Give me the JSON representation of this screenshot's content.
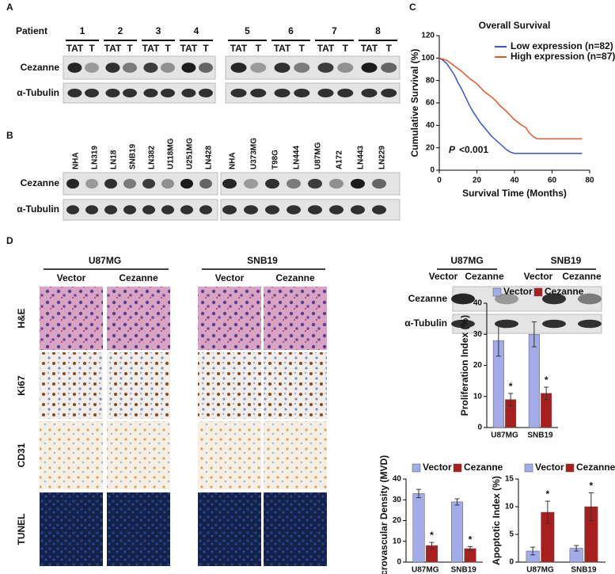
{
  "panel_labels": [
    "A",
    "B",
    "C",
    "D"
  ],
  "blot_a": {
    "row_header": "Patient",
    "patients": [
      "1",
      "2",
      "3",
      "4",
      "5",
      "6",
      "7",
      "8"
    ],
    "lanes": [
      "TAT",
      "T"
    ],
    "rows": [
      "Cezanne",
      "α-Tubulin"
    ]
  },
  "blot_b": {
    "lanes": [
      "NHA",
      "LN319",
      "LN18",
      "SNB19",
      "LN382",
      "U118MG",
      "U251MG",
      "LN428",
      "NHA",
      "U373MG",
      "T98G",
      "LN444",
      "U87MG",
      "A172",
      "LN443",
      "LN229"
    ],
    "rows": [
      "Cezanne",
      "α-Tubulin"
    ]
  },
  "ihc": {
    "groups": [
      "U87MG",
      "SNB19"
    ],
    "conditions": [
      "Vector",
      "Cezanne"
    ],
    "stains": [
      "H&E",
      "Ki67",
      "CD31",
      "TUNEL"
    ]
  },
  "blot_d": {
    "groups": [
      "U87MG",
      "SNB19"
    ],
    "lanes": [
      "Vector",
      "Cezanne",
      "Vector",
      "Cezanne"
    ],
    "rows": [
      "Cezanne",
      "α-Tubulin"
    ]
  },
  "chart_data": [
    {
      "type": "line",
      "title": "Overall Survival",
      "xlabel": "Survival Time (Months)",
      "ylabel": "Cumulative Survival (%)",
      "xlim": [
        0,
        80
      ],
      "ylim": [
        0,
        120
      ],
      "xticks": [
        0,
        20,
        40,
        60,
        80
      ],
      "yticks": [
        0,
        20,
        40,
        60,
        80,
        100,
        120
      ],
      "legend": "upper right",
      "annotation": {
        "symbol": "P",
        "text": "<0.001"
      },
      "series": [
        {
          "name": "Low expression (n=82)",
          "color": "#3a55c8",
          "x": [
            0,
            2,
            4,
            6,
            8,
            10,
            12,
            14,
            16,
            18,
            20,
            22,
            24,
            26,
            28,
            30,
            32,
            34,
            36,
            38,
            40,
            76
          ],
          "values": [
            100,
            98,
            95,
            90,
            85,
            78,
            72,
            65,
            58,
            52,
            47,
            42,
            38,
            34,
            30,
            27,
            24,
            21,
            18,
            16,
            15,
            15
          ]
        },
        {
          "name": "High expression (n=87)",
          "color": "#e2572b",
          "x": [
            0,
            4,
            8,
            12,
            16,
            20,
            24,
            28,
            30,
            32,
            36,
            40,
            44,
            46,
            48,
            50,
            52,
            76
          ],
          "values": [
            100,
            98,
            93,
            88,
            82,
            77,
            70,
            65,
            62,
            58,
            52,
            45,
            40,
            38,
            33,
            30,
            28,
            28
          ]
        }
      ]
    },
    {
      "type": "bar",
      "ylabel": "Proliferation Index (%)",
      "categories": [
        "U87MG",
        "SNB19"
      ],
      "ylim": [
        0,
        40
      ],
      "yticks": [
        0,
        10,
        20,
        30,
        40
      ],
      "legend": "top",
      "annotations": [
        "*",
        "*"
      ],
      "series": [
        {
          "name": "Vector",
          "color": "#a3abe9",
          "values": [
            28,
            30
          ],
          "errors": [
            5,
            4
          ]
        },
        {
          "name": "Cezanne",
          "color": "#a8201e",
          "values": [
            9,
            11
          ],
          "errors": [
            2,
            2
          ]
        }
      ]
    },
    {
      "type": "bar",
      "ylabel": "Microvascular Density (MVD)",
      "categories": [
        "U87MG",
        "SNB19"
      ],
      "ylim": [
        0,
        40
      ],
      "yticks": [
        0,
        10,
        20,
        30,
        40
      ],
      "legend": "top",
      "annotations": [
        "*",
        "*"
      ],
      "series": [
        {
          "name": "Vector",
          "color": "#a3abe9",
          "values": [
            33,
            29
          ],
          "errors": [
            2,
            1.5
          ]
        },
        {
          "name": "Cezanne",
          "color": "#a8201e",
          "values": [
            8,
            6.5
          ],
          "errors": [
            1.5,
            1
          ]
        }
      ]
    },
    {
      "type": "bar",
      "ylabel": "Apoptotic Index (%)",
      "categories": [
        "U87MG",
        "SNB19"
      ],
      "ylim": [
        0,
        15
      ],
      "yticks": [
        0,
        5,
        10,
        15
      ],
      "legend": "top",
      "annotations": [
        "*",
        "*"
      ],
      "series": [
        {
          "name": "Vector",
          "color": "#a3abe9",
          "values": [
            2,
            2.5
          ],
          "errors": [
            0.7,
            0.5
          ]
        },
        {
          "name": "Cezanne",
          "color": "#a8201e",
          "values": [
            9,
            10
          ],
          "errors": [
            2,
            2.5
          ]
        }
      ]
    }
  ]
}
